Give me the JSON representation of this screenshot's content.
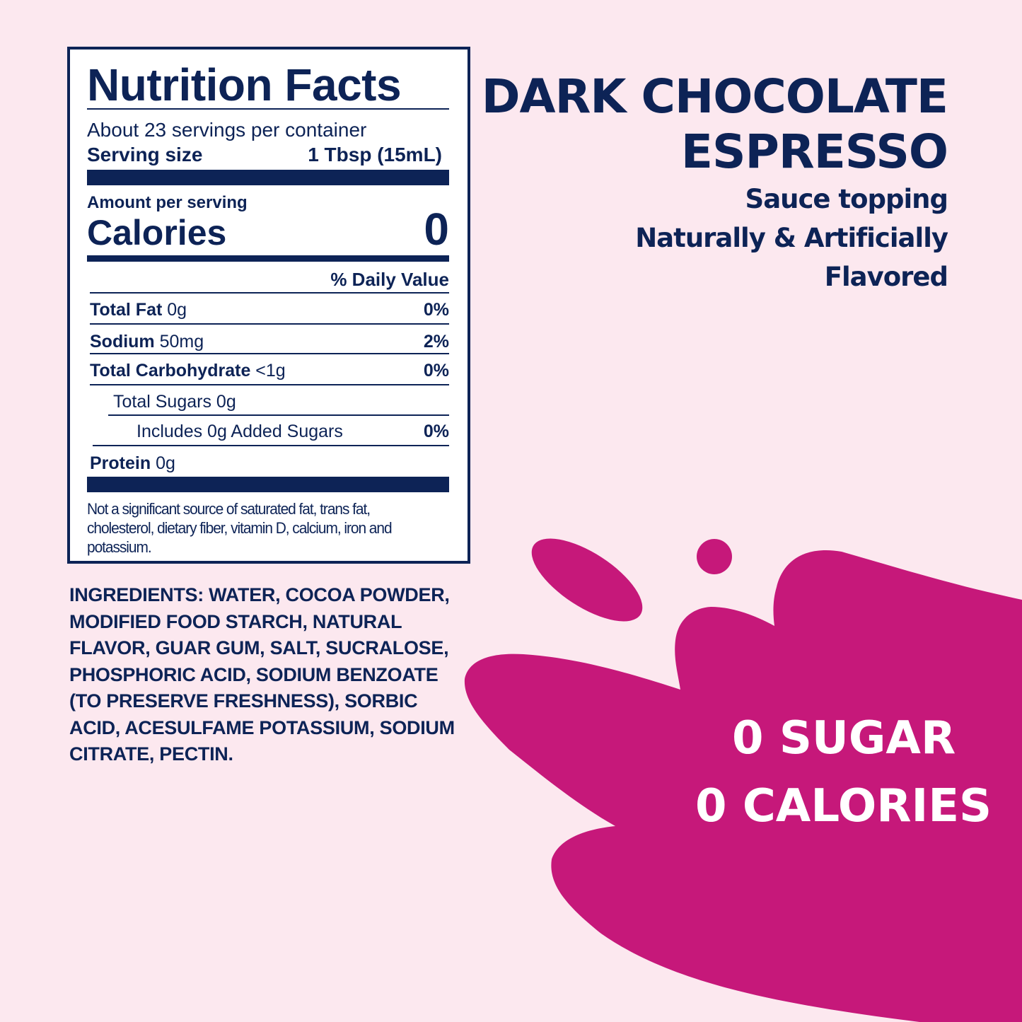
{
  "colors": {
    "background": "#fce8ef",
    "navy": "#0d2356",
    "splash": "#c6187a",
    "claim_text": "#ffffff"
  },
  "nutrition": {
    "title": "Nutrition Facts",
    "servings_per_container": "About 23 servings per container",
    "serving_size_label": "Serving size",
    "serving_size_value": "1 Tbsp (15mL)",
    "amount_per_serving": "Amount per serving",
    "calories_label": "Calories",
    "calories_value": "0",
    "daily_value_header": "% Daily Value",
    "rows": [
      {
        "label": "Total Fat",
        "amount": "0g",
        "dv": "0%"
      },
      {
        "label": "Sodium",
        "amount": "50mg",
        "dv": "2%"
      },
      {
        "label": "Total Carbohydrate",
        "amount": "<1g",
        "dv": "0%"
      },
      {
        "label": "Total Sugars 0g",
        "amount": "",
        "dv": ""
      },
      {
        "label": "Includes 0g Added Sugars",
        "amount": "",
        "dv": "0%"
      },
      {
        "label": "Protein",
        "amount": "0g",
        "dv": ""
      }
    ],
    "footnote": "Not a significant source of saturated fat, trans fat, cholesterol, dietary fiber, vitamin D, calcium, iron and potassium."
  },
  "product": {
    "name_line1": "DARK CHOCOLATE",
    "name_line2": "ESPRESSO",
    "descriptor1": "Sauce topping",
    "descriptor2": "Naturally & Artificially",
    "descriptor3": "Flavored"
  },
  "ingredients": "INGREDIENTS: WATER, COCOA POWDER, MODIFIED FOOD STARCH, NATURAL FLAVOR, GUAR GUM, SALT, SUCRALOSE, PHOSPHORIC ACID, SODIUM BENZOATE (TO PRESERVE FRESHNESS), SORBIC ACID, ACESULFAME POTASSIUM, SODIUM CITRATE, PECTIN.",
  "claims": {
    "line1": "0 SUGAR",
    "line2": "0 CALORIES"
  }
}
